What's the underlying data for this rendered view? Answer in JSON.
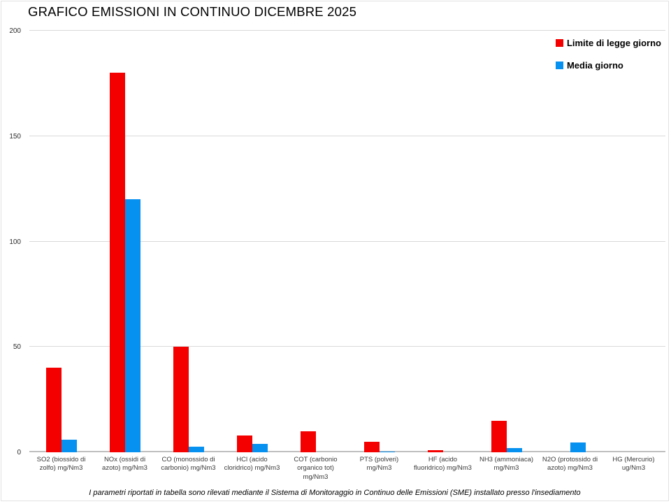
{
  "chart_data": {
    "type": "bar",
    "title": "GRAFICO EMISSIONI IN CONTINUO DICEMBRE 2025",
    "categories": [
      "SO2 (biossido di zolfo) mg/Nm3",
      "NOx (ossidi di azoto) mg/Nm3",
      "CO (monossido di carbonio) mg/Nm3",
      "HCl (acido cloridrico) mg/Nm3",
      "COT (carbonio organico tot) mg/Nm3",
      "PTS (polveri) mg/Nm3",
      "HF (acido fluoridrico) mg/Nm3",
      "NH3 (ammoniaca) mg/Nm3",
      "N2O (protossido di azoto) mg/Nm3",
      "HG (Mercurio) ug/Nm3"
    ],
    "series": [
      {
        "name": "Limite di legge giorno",
        "color": "#f40000",
        "values": [
          40,
          180,
          50,
          8,
          10,
          5,
          1,
          15,
          0,
          0
        ]
      },
      {
        "name": "Media giorno",
        "color": "#0691f0",
        "values": [
          6,
          120,
          2.5,
          4,
          0,
          0.5,
          0,
          2,
          4.5,
          0
        ]
      }
    ],
    "ylim": [
      0,
      200
    ],
    "yticks": [
      0,
      50,
      100,
      150,
      200
    ],
    "grid": true,
    "legend_position": "top-right",
    "xlabel": "",
    "ylabel": ""
  },
  "footer": {
    "text": "I parametri riportati in tabella sono rilevati mediante il Sistema di Monitoraggio in Continuo delle Emissioni (SME) installato presso l'insediamento"
  },
  "colors": {
    "limit_red": "#f40000",
    "media_blue": "#0691f0",
    "gridline": "#d9d9d9",
    "axis_line": "#bfbfbf"
  }
}
